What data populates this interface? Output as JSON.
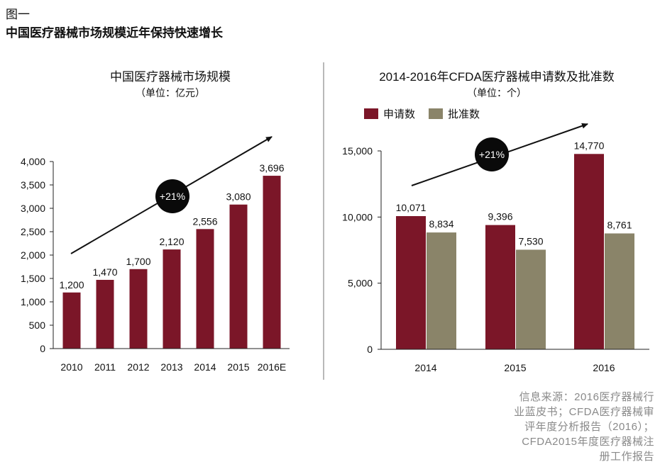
{
  "figure": {
    "label": "图一",
    "title": "中国医疗器械市场规模近年保持快速增长",
    "source": "信息来源：2016医疗器械行业蓝皮书；CFDA医疗器械审评年度分析报告（2016）；CFDA2015年度医疗器械注册工作报告"
  },
  "colors": {
    "red": "#7b1628",
    "gray": "#8a8469",
    "axis": "#222222"
  },
  "chart_data": [
    {
      "type": "bar",
      "title": "中国医疗器械市场规模",
      "subtitle": "（单位：亿元）",
      "categories": [
        "2010",
        "2011",
        "2012",
        "2013",
        "2014",
        "2015",
        "2016E"
      ],
      "values": [
        1200,
        1470,
        1700,
        2120,
        2556,
        3080,
        3696
      ],
      "value_labels": [
        "1,200",
        "1,470",
        "1,700",
        "2,120",
        "2,556",
        "3,080",
        "3,696"
      ],
      "ylim": [
        0,
        4000
      ],
      "yticks": [
        0,
        500,
        1000,
        1500,
        2000,
        2500,
        3000,
        3500,
        4000
      ],
      "ytick_labels": [
        "0",
        "500",
        "1,000",
        "1,500",
        "2,000",
        "2,500",
        "3,000",
        "3,500",
        "4,000"
      ],
      "annotation": "+21%",
      "grid": false
    },
    {
      "type": "bar",
      "title": "2014-2016年CFDA医疗器械申请数及批准数",
      "subtitle": "（单位：个）",
      "categories": [
        "2014",
        "2015",
        "2016"
      ],
      "series": [
        {
          "name": "申请数",
          "values": [
            10071,
            9396,
            14770
          ],
          "labels": [
            "10,071",
            "9,396",
            "14,770"
          ]
        },
        {
          "name": "批准数",
          "values": [
            8834,
            7530,
            8761
          ],
          "labels": [
            "8,834",
            "7,530",
            "8,761"
          ]
        }
      ],
      "ylim": [
        0,
        15000
      ],
      "yticks": [
        0,
        5000,
        10000,
        15000
      ],
      "ytick_labels": [
        "0",
        "5,000",
        "10,000",
        "15,000"
      ],
      "legend": "top-left",
      "annotation": "+21%",
      "grid": false
    }
  ]
}
